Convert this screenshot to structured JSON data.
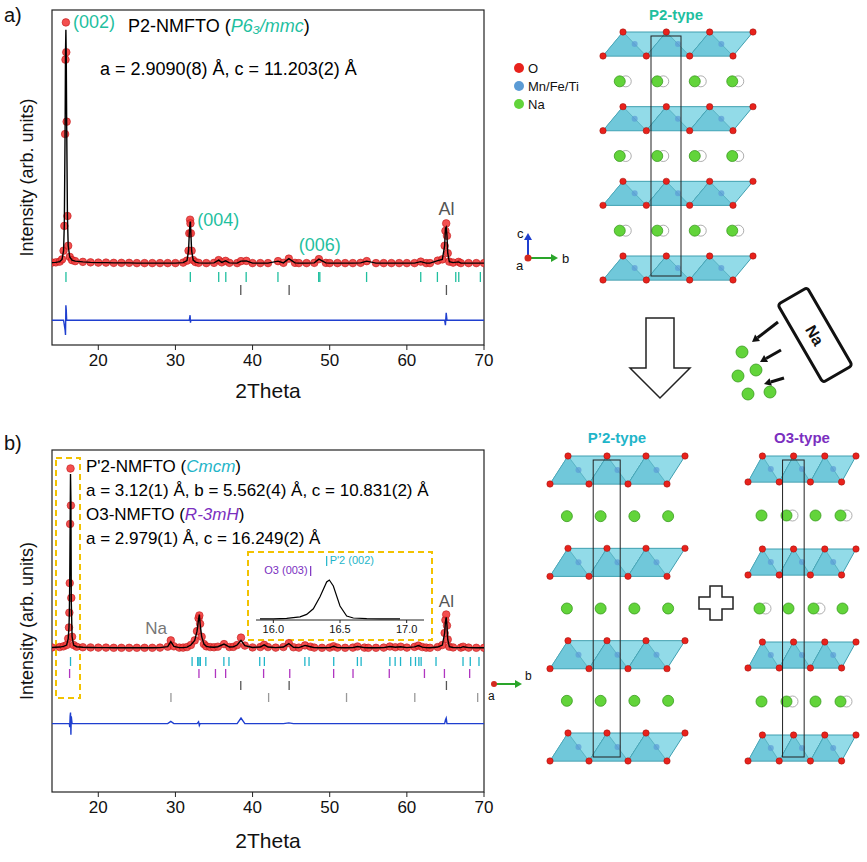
{
  "chart_data": [
    {
      "type": "line",
      "panel": "a)",
      "phase_labels": [
        {
          "parts": [
            "P2-NMFTO (",
            "P6₃/mmc",
            ")"
          ],
          "colors": [
            "#000000",
            "#1fbf9f",
            "#000000"
          ],
          "lattice": "a = 2.9090(8) Å, c = 11.203(2) Å"
        }
      ],
      "x_label": "2Theta",
      "y_label": "Intensity (arb. units)",
      "xlim": [
        14,
        70
      ],
      "ylim": [
        -30,
        105
      ],
      "xticks": [
        20,
        30,
        40,
        50,
        60,
        70
      ],
      "tick_labels": "x",
      "x": [
        14,
        14.5,
        15,
        15.3,
        15.5,
        15.6,
        15.7,
        15.75,
        15.8,
        15.85,
        15.9,
        16,
        16.1,
        16.3,
        16.6,
        17,
        18,
        19,
        20,
        21,
        22,
        23,
        24,
        25,
        26,
        27,
        28,
        29,
        30,
        31,
        31.5,
        31.7,
        31.8,
        31.9,
        31.95,
        32,
        32.1,
        32.3,
        32.6,
        33,
        34,
        35,
        35.6,
        36,
        36.5,
        37,
        38,
        38.5,
        39.2,
        40,
        41,
        42,
        43.3,
        44,
        44.7,
        45.5,
        46,
        47,
        48,
        48.6,
        49.5,
        50,
        51,
        52,
        53,
        54,
        54.8,
        56,
        57,
        58,
        59,
        60,
        61,
        61.8,
        62.5,
        63,
        64,
        64.6,
        64.9,
        65,
        65.1,
        65.2,
        65.3,
        65.5,
        66,
        66.7,
        67,
        68,
        69,
        70
      ],
      "series": [
        {
          "type": "scatter",
          "marker": "circle",
          "color": "#f23c3c",
          "values": [
            3.2,
            3.3,
            3.6,
            4.5,
            8,
            18,
            55,
            85,
            100,
            88,
            60,
            22,
            10,
            5.5,
            4.2,
            3.8,
            3.5,
            3.3,
            3.2,
            3.2,
            3.1,
            3.1,
            3.1,
            3.0,
            3.0,
            3.0,
            3.0,
            3.0,
            3.0,
            3.2,
            4,
            8,
            15,
            20.5,
            19,
            15,
            8,
            4.2,
            3.4,
            3.1,
            3.0,
            3.1,
            4.2,
            3.3,
            3.9,
            3.1,
            3.0,
            3.8,
            3.9,
            3.0,
            3.0,
            3.0,
            3.8,
            3.1,
            4.8,
            3.1,
            3.0,
            3.0,
            3.1,
            4.6,
            3.1,
            3.0,
            3.0,
            3.0,
            3.0,
            3.1,
            3.8,
            3.0,
            3.0,
            3.0,
            3.0,
            3.0,
            3.0,
            3.6,
            3.0,
            3.0,
            4.0,
            4.5,
            10,
            16,
            19,
            14,
            7,
            3.6,
            3.2,
            3.5,
            3.0,
            3.0,
            3.0,
            3.0
          ]
        },
        {
          "type": "line",
          "line_style": "solid",
          "color": "#000000",
          "values": [
            3.2,
            3.3,
            3.6,
            4.5,
            8,
            19,
            57,
            88,
            97,
            86,
            60,
            22,
            10,
            5.5,
            4.2,
            3.8,
            3.5,
            3.3,
            3.2,
            3.2,
            3.1,
            3.1,
            3.1,
            3.0,
            3.0,
            3.0,
            3.0,
            3.0,
            3.0,
            3.2,
            4,
            8,
            15,
            19.5,
            19.5,
            15,
            8,
            4.2,
            3.4,
            3.1,
            3.0,
            3.1,
            4.2,
            3.3,
            3.9,
            3.1,
            3.0,
            3.8,
            3.9,
            3.0,
            3.0,
            3.0,
            3.8,
            3.1,
            4.8,
            3.1,
            3.0,
            3.0,
            3.1,
            4.6,
            3.1,
            3.0,
            3.0,
            3.0,
            3.0,
            3.1,
            3.8,
            3.0,
            3.0,
            3.0,
            3.0,
            3.0,
            3.0,
            3.6,
            3.0,
            3.0,
            4.0,
            4.5,
            10,
            17,
            17.5,
            14,
            7,
            3.6,
            3.2,
            3.5,
            3.0,
            3.0,
            3.0,
            3.0
          ]
        },
        {
          "type": "line",
          "line_style": "solid",
          "color": "#1f3fcf",
          "values": [
            -20,
            -20,
            -20,
            -20,
            -20,
            -22,
            -24,
            -26,
            -14,
            -16,
            -20,
            -20,
            -20,
            -20,
            -20,
            -20,
            -20,
            -20,
            -20,
            -20,
            -20,
            -20,
            -20,
            -20,
            -20,
            -20,
            -20,
            -20,
            -20,
            -20,
            -20,
            -20,
            -20,
            -18,
            -21,
            -20,
            -20,
            -20,
            -20,
            -20,
            -20,
            -20,
            -20,
            -20,
            -20,
            -20,
            -20,
            -20,
            -20,
            -20,
            -20,
            -20,
            -20,
            -20,
            -20,
            -20,
            -20,
            -20,
            -20,
            -20,
            -20,
            -20,
            -20,
            -20,
            -20,
            -20,
            -20,
            -20,
            -20,
            -20,
            -20,
            -20,
            -20,
            -20,
            -20,
            -20,
            -20,
            -20,
            -20,
            -22,
            -17,
            -20,
            -20,
            -20,
            -20,
            -20,
            -20,
            -20,
            -20,
            -20
          ]
        }
      ],
      "reflections": [
        {
          "color": "#1fbf9f",
          "x": [
            15.81,
            31.93,
            35.61,
            36.53,
            39.17,
            43.29,
            48.57,
            48.72,
            54.78,
            61.8,
            63.96,
            66.34,
            66.73,
            69.53
          ]
        },
        {
          "color": "#555555",
          "x": [
            38.47,
            44.74,
            65.13
          ]
        }
      ],
      "annotations": [
        {
          "text": "(002)",
          "x": 15.81,
          "color": "#1fbf9f"
        },
        {
          "text": "(004)",
          "x": 31.93,
          "color": "#1fbf9f"
        },
        {
          "text": "(006)",
          "x": 48.72,
          "color": "#1fbf9f"
        },
        {
          "text": "Al",
          "x": 65.13,
          "color": "#555555"
        }
      ]
    },
    {
      "type": "line",
      "panel": "b)",
      "phase_labels": [
        {
          "parts": [
            "P'2-NMFTO (",
            "Cmcm",
            ")"
          ],
          "colors": [
            "#000000",
            "#1fb5c9",
            "#000000"
          ],
          "lattice": "a = 3.12(1) Å, b = 5.562(4) Å, c = 10.831(2) Å"
        },
        {
          "parts": [
            "O3-NMFTO (",
            "R-3mH",
            ")"
          ],
          "colors": [
            "#000000",
            "#7b2fbf",
            "#000000"
          ],
          "lattice": "a = 2.979(1) Å, c = 16.249(2) Å"
        }
      ],
      "x_label": "2Theta",
      "y_label": "Intensity (arb. units)",
      "xlim": [
        14,
        70
      ],
      "ylim": [
        -75,
        110
      ],
      "xticks": [
        20,
        30,
        40,
        50,
        60,
        70
      ],
      "tick_labels": "x",
      "x": [
        14,
        15,
        15.5,
        15.9,
        16.1,
        16.2,
        16.25,
        16.3,
        16.35,
        16.4,
        16.45,
        16.5,
        16.6,
        16.8,
        17.2,
        18,
        19,
        20,
        21,
        22,
        23,
        24,
        25,
        26,
        27,
        28,
        29,
        29.4,
        29.8,
        30.5,
        31,
        31.5,
        32,
        32.5,
        32.8,
        33,
        33.1,
        33.2,
        33.4,
        33.7,
        34,
        34.5,
        35,
        35.5,
        36.3,
        37,
        37.5,
        38,
        38.5,
        39,
        40,
        41,
        41.5,
        42,
        43,
        44,
        44.7,
        45.3,
        46,
        46.8,
        47.5,
        48,
        49,
        50,
        50.5,
        51,
        52,
        53,
        53.6,
        54.5,
        55,
        56,
        57,
        57.8,
        58.5,
        59.2,
        60,
        61,
        61.5,
        62,
        62.5,
        63,
        64,
        64.6,
        64.9,
        65,
        65.1,
        65.2,
        65.3,
        65.5,
        66,
        67,
        67.3,
        68,
        69,
        70
      ],
      "series": [
        {
          "type": "scatter",
          "marker": "circle",
          "color": "#f23c3c",
          "values": [
            3.2,
            3.4,
            3.8,
            4.5,
            8,
            14,
            22,
            38,
            70,
            100,
            80,
            30,
            9,
            4.5,
            3.6,
            3.3,
            3.2,
            3.1,
            3.1,
            3.0,
            3.0,
            3.0,
            3.0,
            3.0,
            3.0,
            3.1,
            3.6,
            7.0,
            3.8,
            3.1,
            3.1,
            3.4,
            4.5,
            7,
            12,
            19,
            20.5,
            16,
            9,
            5,
            3.8,
            3.4,
            3.3,
            3.6,
            5,
            3.4,
            3.5,
            4.5,
            8.5,
            4.2,
            3.2,
            3.4,
            4.6,
            3.4,
            3.1,
            3.4,
            5.5,
            3.3,
            3.1,
            4.3,
            3.6,
            3.1,
            3.0,
            3.1,
            3.8,
            3.1,
            3.0,
            3.1,
            3.7,
            3.1,
            3.0,
            3.0,
            3.1,
            3.7,
            3.3,
            3.6,
            3.1,
            3.5,
            4.2,
            3.4,
            3.1,
            3.0,
            3.4,
            4.5,
            11,
            18,
            21,
            15,
            7.5,
            3.6,
            3.2,
            3.1,
            3.6,
            3.1,
            3.0,
            3.0
          ]
        },
        {
          "type": "line",
          "line_style": "solid",
          "color": "#000000",
          "values": [
            3.2,
            3.4,
            3.8,
            4.5,
            8,
            14,
            22,
            39,
            68,
            97,
            83,
            28,
            9,
            4.5,
            3.6,
            3.3,
            3.2,
            3.1,
            3.1,
            3.0,
            3.0,
            3.0,
            3.0,
            3.0,
            3.0,
            3.1,
            3.6,
            6.4,
            3.8,
            3.1,
            3.1,
            3.4,
            4.5,
            7,
            12,
            18.5,
            21,
            16,
            9,
            5,
            3.8,
            3.4,
            3.3,
            3.6,
            5,
            3.4,
            3.5,
            4.5,
            7.0,
            4.2,
            3.2,
            3.4,
            4.6,
            3.4,
            3.1,
            3.4,
            5.3,
            3.3,
            3.1,
            4.3,
            3.6,
            3.1,
            3.0,
            3.1,
            3.8,
            3.1,
            3.0,
            3.1,
            3.7,
            3.1,
            3.0,
            3.0,
            3.1,
            3.7,
            3.3,
            3.6,
            3.1,
            3.5,
            4.2,
            3.4,
            3.1,
            3.0,
            3.4,
            4.5,
            11,
            17,
            19.5,
            15,
            7.5,
            3.6,
            3.2,
            3.1,
            3.6,
            3.1,
            3.0,
            3.0
          ]
        },
        {
          "type": "line",
          "line_style": "solid",
          "color": "#1f3fcf",
          "values": [
            -38,
            -38,
            -38,
            -38,
            -38,
            -38,
            -38,
            -40,
            -34,
            -32,
            -44,
            -34,
            -38,
            -38,
            -38,
            -38,
            -38,
            -38,
            -38,
            -38,
            -38,
            -38,
            -38,
            -38,
            -38,
            -38,
            -38,
            -36.8,
            -38,
            -38,
            -38,
            -38,
            -38,
            -38,
            -38,
            -37,
            -39,
            -38,
            -38,
            -38,
            -38,
            -38,
            -38,
            -38,
            -38,
            -38,
            -38,
            -38,
            -35,
            -38,
            -38,
            -38,
            -38,
            -38,
            -38,
            -38,
            -37.6,
            -38,
            -38,
            -38,
            -38,
            -38,
            -38,
            -38,
            -38,
            -38,
            -38,
            -38,
            -38,
            -38,
            -38,
            -38,
            -38,
            -38,
            -38,
            -38,
            -38,
            -38,
            -38,
            -38,
            -38,
            -38,
            -38,
            -38,
            -38,
            -36,
            -35,
            -38,
            -38,
            -38,
            -38,
            -38,
            -38,
            -38,
            -38,
            -38
          ]
        }
      ],
      "reflections": [
        {
          "color": "#1fb5c9",
          "x": [
            16.4,
            32.16,
            32.89,
            33.05,
            33.23,
            33.94,
            36.28,
            36.94,
            40.93,
            41.53,
            46.78,
            47.32,
            50.52,
            53.59,
            54.07,
            57.8,
            58.48,
            59.18,
            60.5,
            61.12,
            61.56,
            61.85,
            63.78,
            67.28,
            68.22,
            69.35
          ]
        },
        {
          "color": "#b035c0",
          "x": [
            16.28,
            33.05,
            35.19,
            36.51,
            41.43,
            44.82,
            50.51,
            53.02,
            57.72,
            62.28,
            64.87,
            68.14
          ]
        },
        {
          "color": "#555555",
          "x": [
            38.47,
            44.74,
            65.13
          ]
        },
        {
          "color": "#999999",
          "x": [
            29.42,
            42.08,
            52.18,
            61.03,
            69.18
          ]
        }
      ],
      "annotations": [
        {
          "text": "Na",
          "x": 29.42,
          "color": "#777777"
        },
        {
          "text": "Al",
          "x": 65.13,
          "color": "#555555"
        }
      ]
    },
    {
      "type": "line",
      "xlim": [
        15.87,
        17.13
      ],
      "ylim": [
        0,
        105
      ],
      "xticks": [
        {
          "value": 16,
          "label": "16.0"
        },
        16.5,
        {
          "value": 17,
          "label": "17.0"
        }
      ],
      "tick_labels": "x",
      "x": [
        15.9,
        16.0,
        16.1,
        16.2,
        16.25,
        16.3,
        16.35,
        16.4,
        16.42,
        16.45,
        16.5,
        16.55,
        16.6,
        16.7,
        16.8,
        16.95
      ],
      "series": [
        {
          "type": "line",
          "line_style": "solid",
          "color": "#000000",
          "values": [
            3,
            3,
            4,
            8,
            14,
            28,
            58,
            95,
            100,
            85,
            35,
            10,
            5,
            3.5,
            3,
            3
          ]
        }
      ],
      "annotations": [
        {
          "text": "O3 (003)",
          "x": 16.28,
          "color": "#7b2fbf"
        },
        {
          "text": "P'2 (002)",
          "x": 16.4,
          "color": "#1fb5c9"
        }
      ]
    }
  ],
  "diagram": {
    "legend": [
      {
        "label": "O",
        "color": "#e8221c"
      },
      {
        "label": "Mn/Fe/Ti",
        "color": "#5b9bd5"
      },
      {
        "label": "Na",
        "color": "#62d43a"
      }
    ],
    "axes_top": [
      "c",
      "b",
      "a"
    ],
    "axes_bottom": [
      "a",
      "b"
    ],
    "structures": [
      {
        "title": "P2-type",
        "color": "#1fbf9f"
      },
      {
        "title": "P’2-type",
        "color": "#1fb5c9"
      },
      {
        "title": "O3-type",
        "color": "#7b2fbf"
      }
    ],
    "source": "Na"
  }
}
